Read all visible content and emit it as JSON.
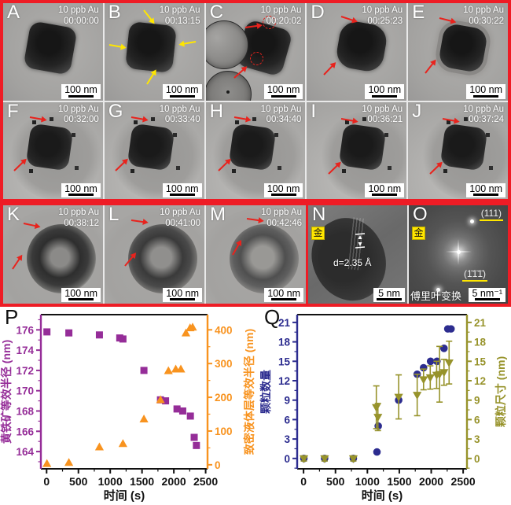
{
  "colors": {
    "frame_red": "#ee1c25",
    "arrow_red": "#e8231d",
    "arrow_yellow": "#ffe600",
    "pyrite_purple": "#952d98",
    "liquid_orange": "#f8931f",
    "count_blue": "#2c2c8f",
    "size_olive": "#97932b"
  },
  "figure": {
    "panels": [
      {
        "label": "A",
        "condition": "10 ppb Au",
        "time": "00:00:00",
        "scale": "100 nm"
      },
      {
        "label": "B",
        "condition": "10 ppb Au",
        "time": "00:13:15",
        "scale": "100 nm"
      },
      {
        "label": "C",
        "condition": "10 ppb Au",
        "time": "00:20:02",
        "scale": "100 nm"
      },
      {
        "label": "D",
        "condition": "10 ppb Au",
        "time": "00:25:23",
        "scale": "100 nm"
      },
      {
        "label": "E",
        "condition": "10 ppb Au",
        "time": "00:30:22",
        "scale": "100 nm"
      },
      {
        "label": "F",
        "condition": "10 ppb Au",
        "time": "00:32:00",
        "scale": "100 nm"
      },
      {
        "label": "G",
        "condition": "10 ppb Au",
        "time": "00:33:40",
        "scale": "100 nm"
      },
      {
        "label": "H",
        "condition": "10 ppb Au",
        "time": "00:34:40",
        "scale": "100 nm"
      },
      {
        "label": "I",
        "condition": "10 ppb Au",
        "time": "00:36:21",
        "scale": "100 nm"
      },
      {
        "label": "J",
        "condition": "10 ppb Au",
        "time": "00:37:24",
        "scale": "100 nm"
      },
      {
        "label": "K",
        "condition": "10 ppb Au",
        "time": "00:38:12",
        "scale": "100 nm"
      },
      {
        "label": "L",
        "condition": "10 ppb Au",
        "time": "00:41:00",
        "scale": "100 nm"
      },
      {
        "label": "M",
        "condition": "10 ppb Au",
        "time": "00:42:46",
        "scale": "100 nm"
      },
      {
        "label": "N",
        "badge": "金",
        "annotation": "d=2.35 Å",
        "scale": "5 nm"
      },
      {
        "label": "O",
        "badge": "金",
        "plane_top": "(111)",
        "plane_bottom": "(1̄1̄1̄)",
        "caption": "傅里叶变换",
        "scale": "5 nm⁻¹"
      }
    ]
  },
  "chart_data": [
    {
      "type": "scatter",
      "panel": "P",
      "xlabel": "时间 (s)",
      "x_ticks": [
        0,
        500,
        1000,
        1500,
        2000,
        2500
      ],
      "x_range": [
        -90,
        2530
      ],
      "grid": false,
      "left_axis": {
        "label": "黄铁矿等效半径 (nm)",
        "color": "#952d98",
        "ticks": [
          164,
          166,
          168,
          170,
          172,
          174,
          176
        ],
        "range": [
          162.3,
          177.5
        ]
      },
      "right_axis": {
        "label": "致密液体层等效半径 (nm)",
        "color": "#f8931f",
        "ticks": [
          0,
          100,
          200,
          300,
          400
        ],
        "range": [
          -12,
          445
        ]
      },
      "series": [
        {
          "name": "黄铁矿等效半径",
          "axis": "left",
          "marker": "square",
          "color": "#952d98",
          "points": [
            [
              5,
              175.8
            ],
            [
              350,
              175.7
            ],
            [
              830,
              175.5
            ],
            [
              1150,
              175.2
            ],
            [
              1200,
              175.1
            ],
            [
              1530,
              172.0
            ],
            [
              1790,
              169.1
            ],
            [
              1870,
              169.0
            ],
            [
              2050,
              168.2
            ],
            [
              2140,
              168.0
            ],
            [
              2260,
              167.5
            ],
            [
              2320,
              165.4
            ],
            [
              2355,
              164.6
            ]
          ]
        },
        {
          "name": "致密液体层等效半径",
          "axis": "right",
          "marker": "triangle-up",
          "color": "#f8931f",
          "points": [
            [
              5,
              3
            ],
            [
              350,
              6
            ],
            [
              830,
              52
            ],
            [
              1200,
              62
            ],
            [
              1530,
              135
            ],
            [
              1790,
              192
            ],
            [
              1915,
              278
            ],
            [
              2030,
              283
            ],
            [
              2110,
              283
            ],
            [
              2190,
              390
            ],
            [
              2255,
              405
            ],
            [
              2295,
              407
            ]
          ]
        }
      ]
    },
    {
      "type": "scatter",
      "panel": "Q",
      "xlabel": "时间 (s)",
      "x_ticks": [
        0,
        500,
        1000,
        1500,
        2000,
        2500
      ],
      "x_range": [
        -100,
        2560
      ],
      "grid": false,
      "left_axis": {
        "label": "颗粒数量",
        "color": "#2c2c8f",
        "ticks": [
          0,
          3,
          6,
          9,
          12,
          15,
          18,
          21
        ],
        "range": [
          -1.6,
          22.2
        ]
      },
      "right_axis": {
        "label": "颗粒尺寸 (nm)",
        "color": "#97932b",
        "ticks": [
          0,
          3,
          6,
          9,
          12,
          15,
          18,
          21
        ],
        "range": [
          -1.6,
          22.2
        ]
      },
      "series": [
        {
          "name": "颗粒数量",
          "axis": "left",
          "marker": "circle",
          "color": "#2c2c8f",
          "points": [
            [
              5,
              0
            ],
            [
              330,
              0
            ],
            [
              780,
              0
            ],
            [
              1150,
              1
            ],
            [
              1170,
              5
            ],
            [
              1490,
              9
            ],
            [
              1780,
              13
            ],
            [
              1880,
              14
            ],
            [
              1990,
              15
            ],
            [
              2090,
              15
            ],
            [
              2200,
              17
            ],
            [
              2260,
              20
            ],
            [
              2310,
              20
            ]
          ]
        },
        {
          "name": "颗粒尺寸",
          "axis": "right",
          "marker": "triangle-down",
          "color": "#97932b",
          "error_bars": true,
          "points": [
            [
              5,
              0,
              0.4
            ],
            [
              330,
              0,
              0.4
            ],
            [
              780,
              0,
              0.4
            ],
            [
              1140,
              7.9,
              3.3
            ],
            [
              1165,
              6.4,
              2.1
            ],
            [
              1490,
              9.5,
              3.4
            ],
            [
              1780,
              9.8,
              3.2
            ],
            [
              1880,
              12.2,
              1.6
            ],
            [
              1985,
              12.5,
              1.8
            ],
            [
              2085,
              12.9,
              2.1
            ],
            [
              2130,
              13.0,
              4.3
            ],
            [
              2200,
              13.3,
              2.0
            ],
            [
              2280,
              14.8,
              3.3
            ]
          ]
        }
      ]
    }
  ]
}
